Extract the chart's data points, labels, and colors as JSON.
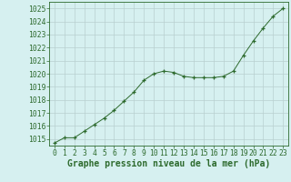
{
  "x": [
    0,
    1,
    2,
    3,
    4,
    5,
    6,
    7,
    8,
    9,
    10,
    11,
    12,
    13,
    14,
    15,
    16,
    17,
    18,
    19,
    20,
    21,
    22,
    23
  ],
  "y": [
    1014.7,
    1015.1,
    1015.1,
    1015.6,
    1016.1,
    1016.6,
    1017.2,
    1017.9,
    1018.6,
    1019.5,
    1020.0,
    1020.2,
    1020.1,
    1019.8,
    1019.7,
    1019.7,
    1019.7,
    1019.8,
    1020.2,
    1021.4,
    1022.5,
    1023.5,
    1024.4,
    1025.0
  ],
  "ylim": [
    1014.5,
    1025.5
  ],
  "yticks": [
    1015,
    1016,
    1017,
    1018,
    1019,
    1020,
    1021,
    1022,
    1023,
    1024,
    1025
  ],
  "xticks": [
    0,
    1,
    2,
    3,
    4,
    5,
    6,
    7,
    8,
    9,
    10,
    11,
    12,
    13,
    14,
    15,
    16,
    17,
    18,
    19,
    20,
    21,
    22,
    23
  ],
  "line_color": "#2d6a2d",
  "marker_color": "#2d6a2d",
  "bg_color": "#d6f0f0",
  "grid_color": "#b8d0d0",
  "xlabel": "Graphe pression niveau de la mer (hPa)",
  "xlabel_color": "#2d6a2d",
  "tick_color": "#2d6a2d",
  "spine_color": "#2d6a2d",
  "tick_fontsize": 5.8,
  "axis_label_fontsize": 7.0
}
